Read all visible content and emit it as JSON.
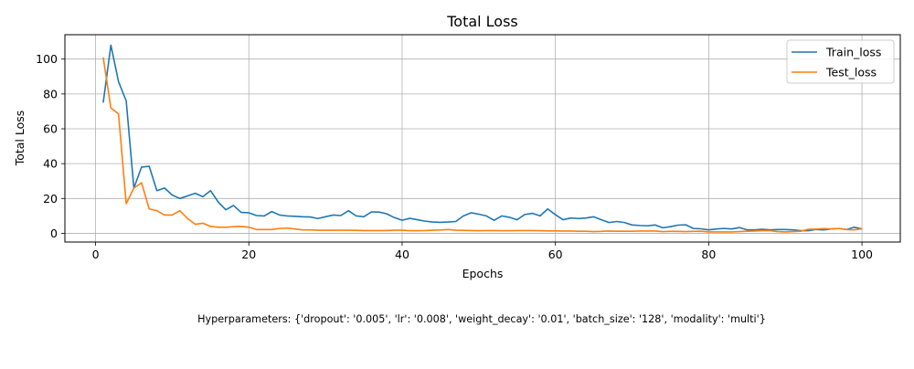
{
  "chart_data": {
    "type": "line",
    "title": "Total Loss",
    "xlabel": "Epochs",
    "ylabel": "Total Loss",
    "xlim": [
      -4,
      105
    ],
    "ylim": [
      -5,
      114
    ],
    "xticks": [
      0,
      20,
      40,
      60,
      80,
      100
    ],
    "yticks": [
      0,
      20,
      40,
      60,
      80,
      100
    ],
    "grid": true,
    "legend_position": "upper right",
    "footnote": "Hyperparameters: {'dropout': '0.005', 'lr': '0.008', 'weight_decay': '0.01', 'batch_size': '128', 'modality': 'multi'}",
    "x": [
      1,
      2,
      3,
      4,
      5,
      6,
      7,
      8,
      9,
      10,
      11,
      12,
      13,
      14,
      15,
      16,
      17,
      18,
      19,
      20,
      21,
      22,
      23,
      24,
      25,
      26,
      27,
      28,
      29,
      30,
      31,
      32,
      33,
      34,
      35,
      36,
      37,
      38,
      39,
      40,
      41,
      42,
      43,
      44,
      45,
      46,
      47,
      48,
      49,
      50,
      51,
      52,
      53,
      54,
      55,
      56,
      57,
      58,
      59,
      60,
      61,
      62,
      63,
      64,
      65,
      66,
      67,
      68,
      69,
      70,
      71,
      72,
      73,
      74,
      75,
      76,
      77,
      78,
      79,
      80,
      81,
      82,
      83,
      84,
      85,
      86,
      87,
      88,
      89,
      90,
      91,
      92,
      93,
      94,
      95,
      96,
      97,
      98,
      99,
      100
    ],
    "series": [
      {
        "name": "Train_loss",
        "color": "#1f77b4",
        "values": [
          75,
          108,
          87,
          76,
          26,
          38,
          38.5,
          24.5,
          26,
          22,
          20,
          21.5,
          23,
          21,
          24.5,
          18,
          13.5,
          16,
          12,
          11.8,
          10.2,
          10,
          12.5,
          10.5,
          10,
          9.8,
          9.5,
          9.4,
          8.5,
          9.5,
          10.5,
          10.2,
          13,
          10,
          9.5,
          12.3,
          12.2,
          11.2,
          9,
          7.5,
          8.6,
          7.8,
          7,
          6.5,
          6.3,
          6.5,
          6.8,
          10,
          11.8,
          11,
          10,
          7.5,
          10,
          9.2,
          7.8,
          10.8,
          11.5,
          10,
          14,
          10.7,
          7.8,
          8.8,
          8.5,
          8.8,
          9.5,
          7.8,
          6.2,
          6.8,
          6.2,
          4.8,
          4.5,
          4.3,
          4.8,
          3.2,
          3.8,
          4.7,
          4.9,
          2.8,
          2.6,
          2,
          2.5,
          2.8,
          2.5,
          3.3,
          2,
          2,
          2.3,
          2,
          2.2,
          2.2,
          2,
          1.5,
          1.5,
          2.2,
          2,
          2.5,
          2.8,
          2.2,
          3.5,
          2.5
        ]
      },
      {
        "name": "Test_loss",
        "color": "#ff7f0e",
        "values": [
          101,
          72,
          68.5,
          17,
          26,
          29,
          14,
          13,
          10.5,
          10.5,
          13,
          8.5,
          5.2,
          5.8,
          4,
          3.5,
          3.5,
          3.8,
          4,
          3.5,
          2.2,
          2.2,
          2.2,
          2.8,
          3,
          2.5,
          2,
          2,
          1.8,
          1.8,
          1.8,
          1.8,
          1.8,
          1.7,
          1.6,
          1.6,
          1.6,
          1.6,
          1.8,
          1.8,
          1.5,
          1.5,
          1.6,
          1.8,
          1.9,
          2.2,
          1.8,
          1.7,
          1.6,
          1.5,
          1.6,
          1.6,
          1.5,
          1.5,
          1.6,
          1.6,
          1.6,
          1.5,
          1.4,
          1.4,
          1.3,
          1.3,
          1.2,
          1.2,
          1,
          1.1,
          1.3,
          1.2,
          1.2,
          1.2,
          1.3,
          1.3,
          1.3,
          1,
          1.1,
          1.1,
          1,
          1.1,
          1.2,
          0.8,
          0.8,
          0.8,
          0.8,
          1,
          1.2,
          1.3,
          1.5,
          1.5,
          1,
          0.8,
          1,
          1.2,
          2.3,
          2.4,
          2.7,
          2.5,
          2.8,
          2.2,
          2,
          2.6
        ]
      }
    ]
  }
}
